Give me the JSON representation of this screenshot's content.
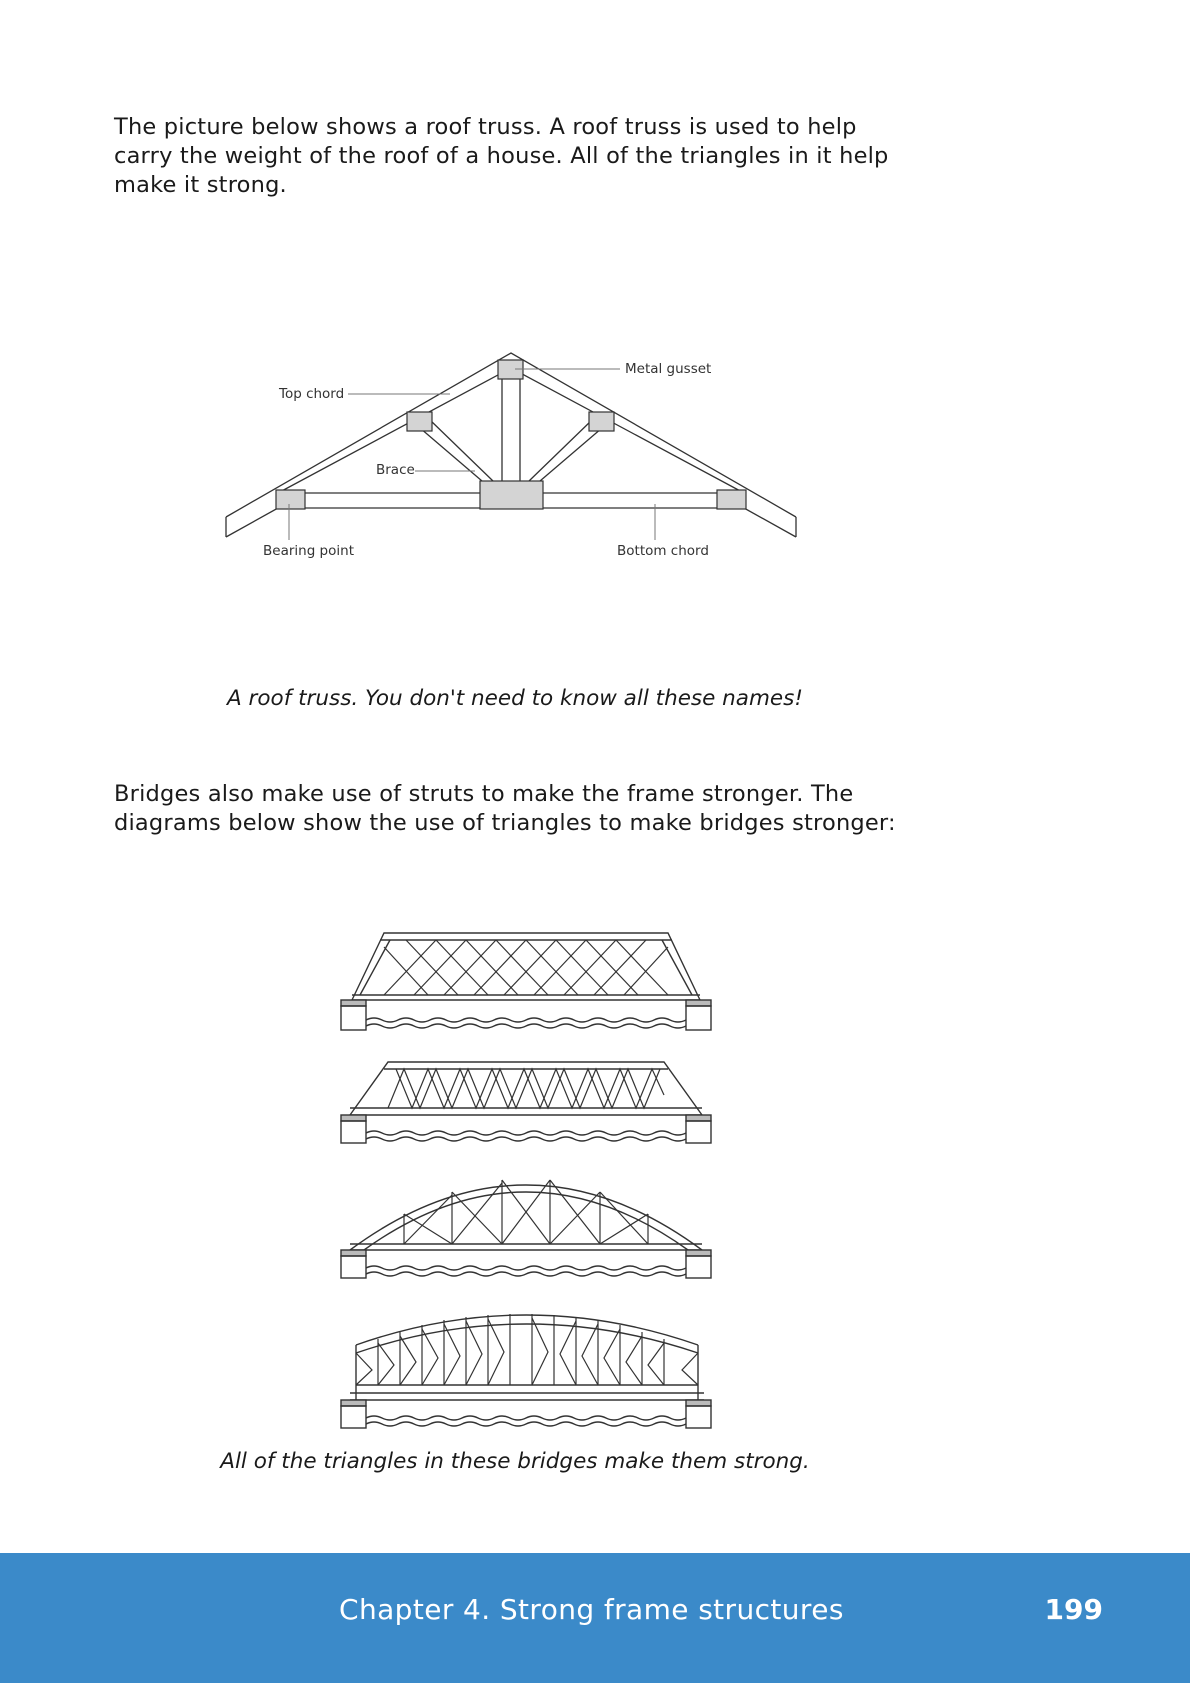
{
  "intro_text": "The picture below shows a roof truss. A roof truss is used to help carry the weight of the roof of a house. All of the triangles in it help make it strong.",
  "truss": {
    "labels": {
      "metal_gusset": "Metal gusset",
      "top_chord": "Top chord",
      "brace": "Brace",
      "bearing_point": "Bearing point",
      "bottom_chord": "Bottom chord"
    },
    "caption": "A roof truss. You don't need to know all these names!"
  },
  "bridges_text": "Bridges also make use of struts to make the frame stronger. The diagrams below show the use of triangles to make bridges stronger:",
  "bridges_caption": "All of the triangles in these bridges make them strong.",
  "footer": {
    "chapter": "Chapter 4.  Strong frame structures",
    "page_number": "199",
    "color": "#3b8ac9"
  }
}
